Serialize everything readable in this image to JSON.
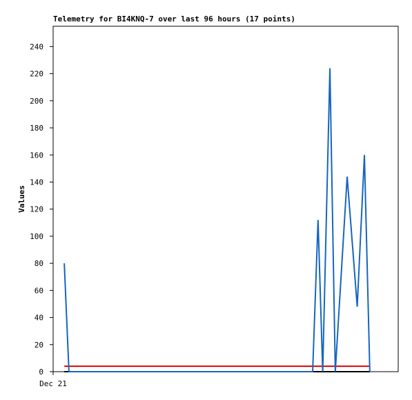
{
  "chart_data": {
    "type": "line",
    "title": "Telemetry for BI4KNQ-7 over last 96 hours (17 points)",
    "y_label": "Values",
    "xlim": [
      0,
      96
    ],
    "xticks": [
      {
        "value": 0,
        "label": "Dec 21"
      }
    ],
    "ylim": [
      0,
      255
    ],
    "yticks": [
      0,
      20,
      40,
      60,
      80,
      100,
      120,
      140,
      160,
      180,
      200,
      220,
      240
    ],
    "series": [
      {
        "color": "#1565c0",
        "x": [
          3.1,
          4.4,
          72.2,
          73.7,
          75.0,
          77.0,
          78.5,
          81.8,
          84.6,
          86.6,
          88.1
        ],
        "values": [
          80,
          0,
          0,
          112,
          0,
          224,
          0,
          144,
          48,
          160,
          0
        ]
      },
      {
        "color": "#e00000",
        "x": [
          3.1,
          88.1
        ],
        "values": [
          4,
          4
        ]
      },
      {
        "color": "#000000",
        "x": [
          3.1,
          88.1
        ],
        "values": [
          0,
          0
        ]
      }
    ]
  }
}
